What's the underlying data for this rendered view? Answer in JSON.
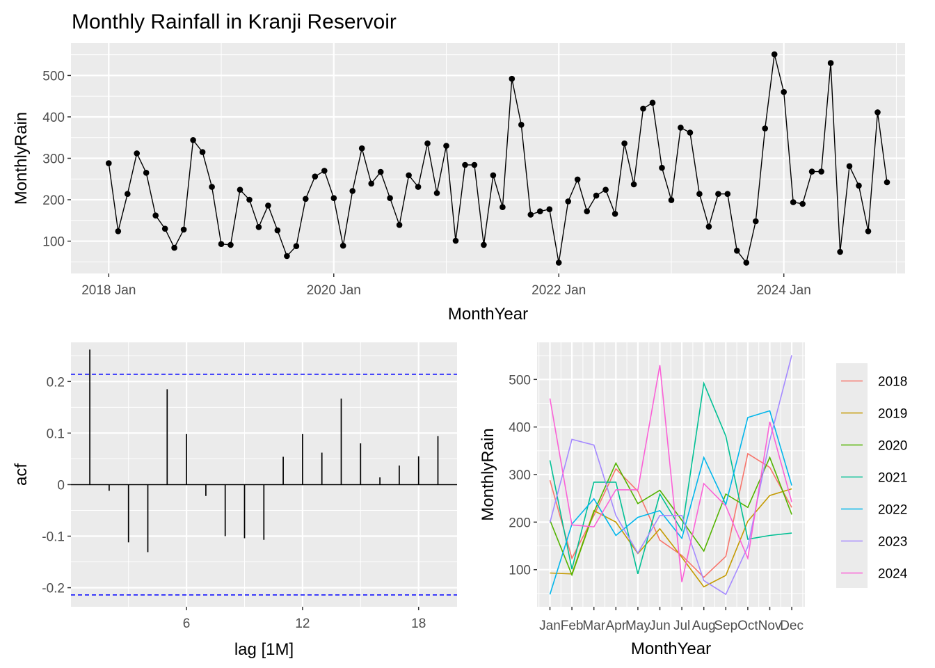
{
  "chart_data": [
    {
      "type": "line",
      "title": "Monthly Rainfall in Kranji Reservoir",
      "xlabel": "MonthYear",
      "ylabel": "MonthlyRain",
      "x_tick_labels": [
        "2018 Jan",
        "2020 Jan",
        "2022 Jan",
        "2024 Jan"
      ],
      "y_ticks": [
        100,
        200,
        300,
        400,
        500
      ],
      "ylim": [
        22,
        578
      ],
      "grid": true,
      "series": [
        {
          "x": [
            "2018-01",
            "2018-02",
            "2018-03",
            "2018-04",
            "2018-05",
            "2018-06",
            "2018-07",
            "2018-08",
            "2018-09",
            "2018-10",
            "2018-11",
            "2018-12",
            "2019-01",
            "2019-02",
            "2019-03",
            "2019-04",
            "2019-05",
            "2019-06",
            "2019-07",
            "2019-08",
            "2019-09",
            "2019-10",
            "2019-11",
            "2019-12",
            "2020-01",
            "2020-02",
            "2020-03",
            "2020-04",
            "2020-05",
            "2020-06",
            "2020-07",
            "2020-08",
            "2020-09",
            "2020-10",
            "2020-11",
            "2020-12",
            "2021-01",
            "2021-02",
            "2021-03",
            "2021-04",
            "2021-05",
            "2021-06",
            "2021-07",
            "2021-08",
            "2021-09",
            "2021-10",
            "2021-11",
            "2021-12",
            "2022-01",
            "2022-02",
            "2022-03",
            "2022-04",
            "2022-05",
            "2022-06",
            "2022-07",
            "2022-08",
            "2022-09",
            "2022-10",
            "2022-11",
            "2022-12",
            "2023-01",
            "2023-02",
            "2023-03",
            "2023-04",
            "2023-05",
            "2023-06",
            "2023-07",
            "2023-08",
            "2023-09",
            "2023-10",
            "2023-11",
            "2023-12",
            "2024-01",
            "2024-02",
            "2024-03",
            "2024-04",
            "2024-05",
            "2024-06",
            "2024-07",
            "2024-08",
            "2024-09",
            "2024-10",
            "2024-11",
            "2024-12"
          ],
          "y": [
            288,
            124,
            214,
            312,
            265,
            162,
            130,
            84,
            128,
            344,
            315,
            231,
            93,
            91,
            224,
            200,
            134,
            186,
            126,
            64,
            88,
            202,
            256,
            270,
            204,
            89,
            221,
            324,
            239,
            267,
            204,
            139,
            259,
            231,
            336,
            216,
            330,
            101,
            284,
            284,
            91,
            259,
            182,
            492,
            381,
            164,
            172,
            177,
            48,
            196,
            249,
            172,
            210,
            224,
            166,
            336,
            237,
            420,
            434,
            277,
            199,
            374,
            362,
            214,
            135,
            214,
            214,
            77,
            48,
            148,
            372,
            551,
            460,
            194,
            190,
            268,
            268,
            530,
            74,
            281,
            234,
            124,
            411,
            242
          ]
        }
      ]
    },
    {
      "type": "bar",
      "xlabel": "lag [1M]",
      "ylabel": "acf",
      "lags": [
        1,
        2,
        3,
        4,
        5,
        6,
        7,
        8,
        9,
        10,
        11,
        12,
        13,
        14,
        15,
        16,
        17,
        18,
        19
      ],
      "values": [
        0.262,
        -0.012,
        -0.112,
        -0.131,
        0.185,
        0.098,
        -0.022,
        -0.1,
        -0.104,
        -0.107,
        0.054,
        0.098,
        0.062,
        0.167,
        0.08,
        0.014,
        0.037,
        0.055,
        0.094
      ],
      "confidence_limit": 0.214,
      "x_ticks": [
        6,
        12,
        18
      ],
      "y_ticks": [
        -0.2,
        -0.1,
        0.0,
        0.1,
        0.2
      ],
      "ylim": [
        -0.237,
        0.276
      ],
      "xlim": [
        0,
        20
      ],
      "confidence_line_color": "#0000ff"
    },
    {
      "type": "line",
      "xlabel": "MonthYear",
      "ylabel": "MonthlyRain",
      "categories": [
        "Jan",
        "Feb",
        "Mar",
        "Apr",
        "May",
        "Jun",
        "Jul",
        "Aug",
        "Sep",
        "Oct",
        "Nov",
        "Dec"
      ],
      "y_ticks": [
        100,
        200,
        300,
        400,
        500
      ],
      "ylim": [
        22,
        578
      ],
      "legend_position": "right",
      "series": [
        {
          "name": "2018",
          "color": "#F8766D",
          "values": [
            288,
            124,
            214,
            312,
            265,
            162,
            130,
            84,
            128,
            344,
            315,
            231
          ]
        },
        {
          "name": "2019",
          "color": "#C49A00",
          "values": [
            93,
            91,
            224,
            200,
            134,
            186,
            126,
            64,
            88,
            202,
            256,
            270
          ]
        },
        {
          "name": "2020",
          "color": "#53B400",
          "values": [
            204,
            89,
            221,
            324,
            239,
            267,
            204,
            139,
            259,
            231,
            336,
            216
          ]
        },
        {
          "name": "2021",
          "color": "#00C094",
          "values": [
            330,
            101,
            284,
            284,
            91,
            259,
            182,
            492,
            381,
            164,
            172,
            177
          ]
        },
        {
          "name": "2022",
          "color": "#00B6EB",
          "values": [
            48,
            196,
            249,
            172,
            210,
            224,
            166,
            336,
            237,
            420,
            434,
            277
          ]
        },
        {
          "name": "2023",
          "color": "#A58AFF",
          "values": [
            199,
            374,
            362,
            214,
            135,
            214,
            214,
            77,
            48,
            148,
            372,
            551
          ]
        },
        {
          "name": "2024",
          "color": "#FB61D7",
          "values": [
            460,
            194,
            190,
            268,
            268,
            530,
            74,
            281,
            234,
            124,
            411,
            242
          ]
        }
      ]
    }
  ]
}
